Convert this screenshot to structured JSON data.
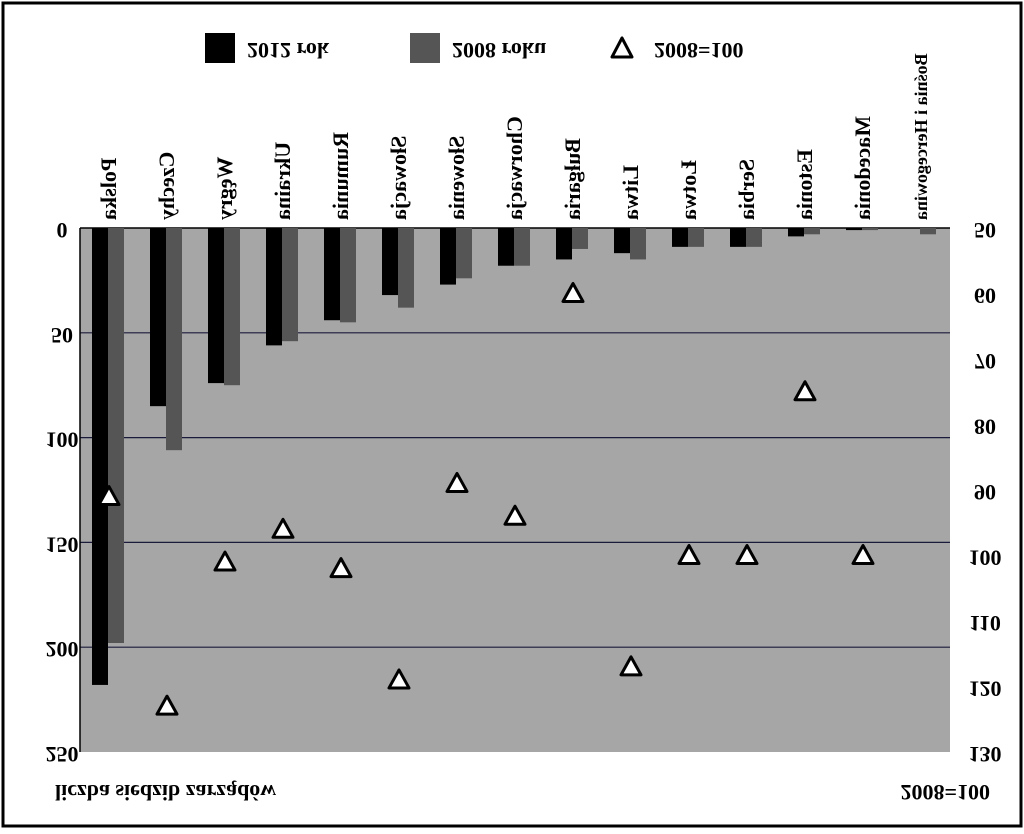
{
  "chart_data": {
    "type": "bar",
    "categories": [
      "Polska",
      "Czechy",
      "Węgry",
      "Ukraina",
      "Rumunia",
      "Słowacja",
      "Słowenia",
      "Chorwacja",
      "Bułgaria",
      "Litwa",
      "Łotwa",
      "Serbia",
      "Estonia",
      "Macedonia",
      "Bośnia i Hercegowina"
    ],
    "series": [
      {
        "name": "2012 rok",
        "color": "#000000",
        "values": [
          218,
          85,
          74,
          56,
          44,
          32,
          27,
          18,
          15,
          12,
          9,
          9,
          4,
          1,
          0
        ]
      },
      {
        "name": "2008 roku",
        "color": "#555555",
        "values": [
          198,
          106,
          75,
          54,
          45,
          38,
          24,
          18,
          10,
          15,
          9,
          9,
          3,
          1,
          3
        ]
      },
      {
        "name": "2008=100",
        "type": "scatter",
        "axis": "y2",
        "color": "#ffffff",
        "values": [
          91,
          123,
          101,
          96,
          102,
          119,
          89,
          94,
          60,
          117,
          100,
          100,
          75,
          100,
          null
        ]
      }
    ],
    "ylabel": "liczba siedzib zarządów",
    "y2label": "2008=100",
    "ylim": [
      0,
      250
    ],
    "yticks": [
      0,
      50,
      100,
      150,
      200,
      250
    ],
    "y2lim": [
      50,
      130
    ],
    "y2ticks": [
      50,
      60,
      70,
      80,
      90,
      100,
      110,
      120,
      130
    ],
    "grid": true,
    "legend": "top",
    "flipped": true
  }
}
